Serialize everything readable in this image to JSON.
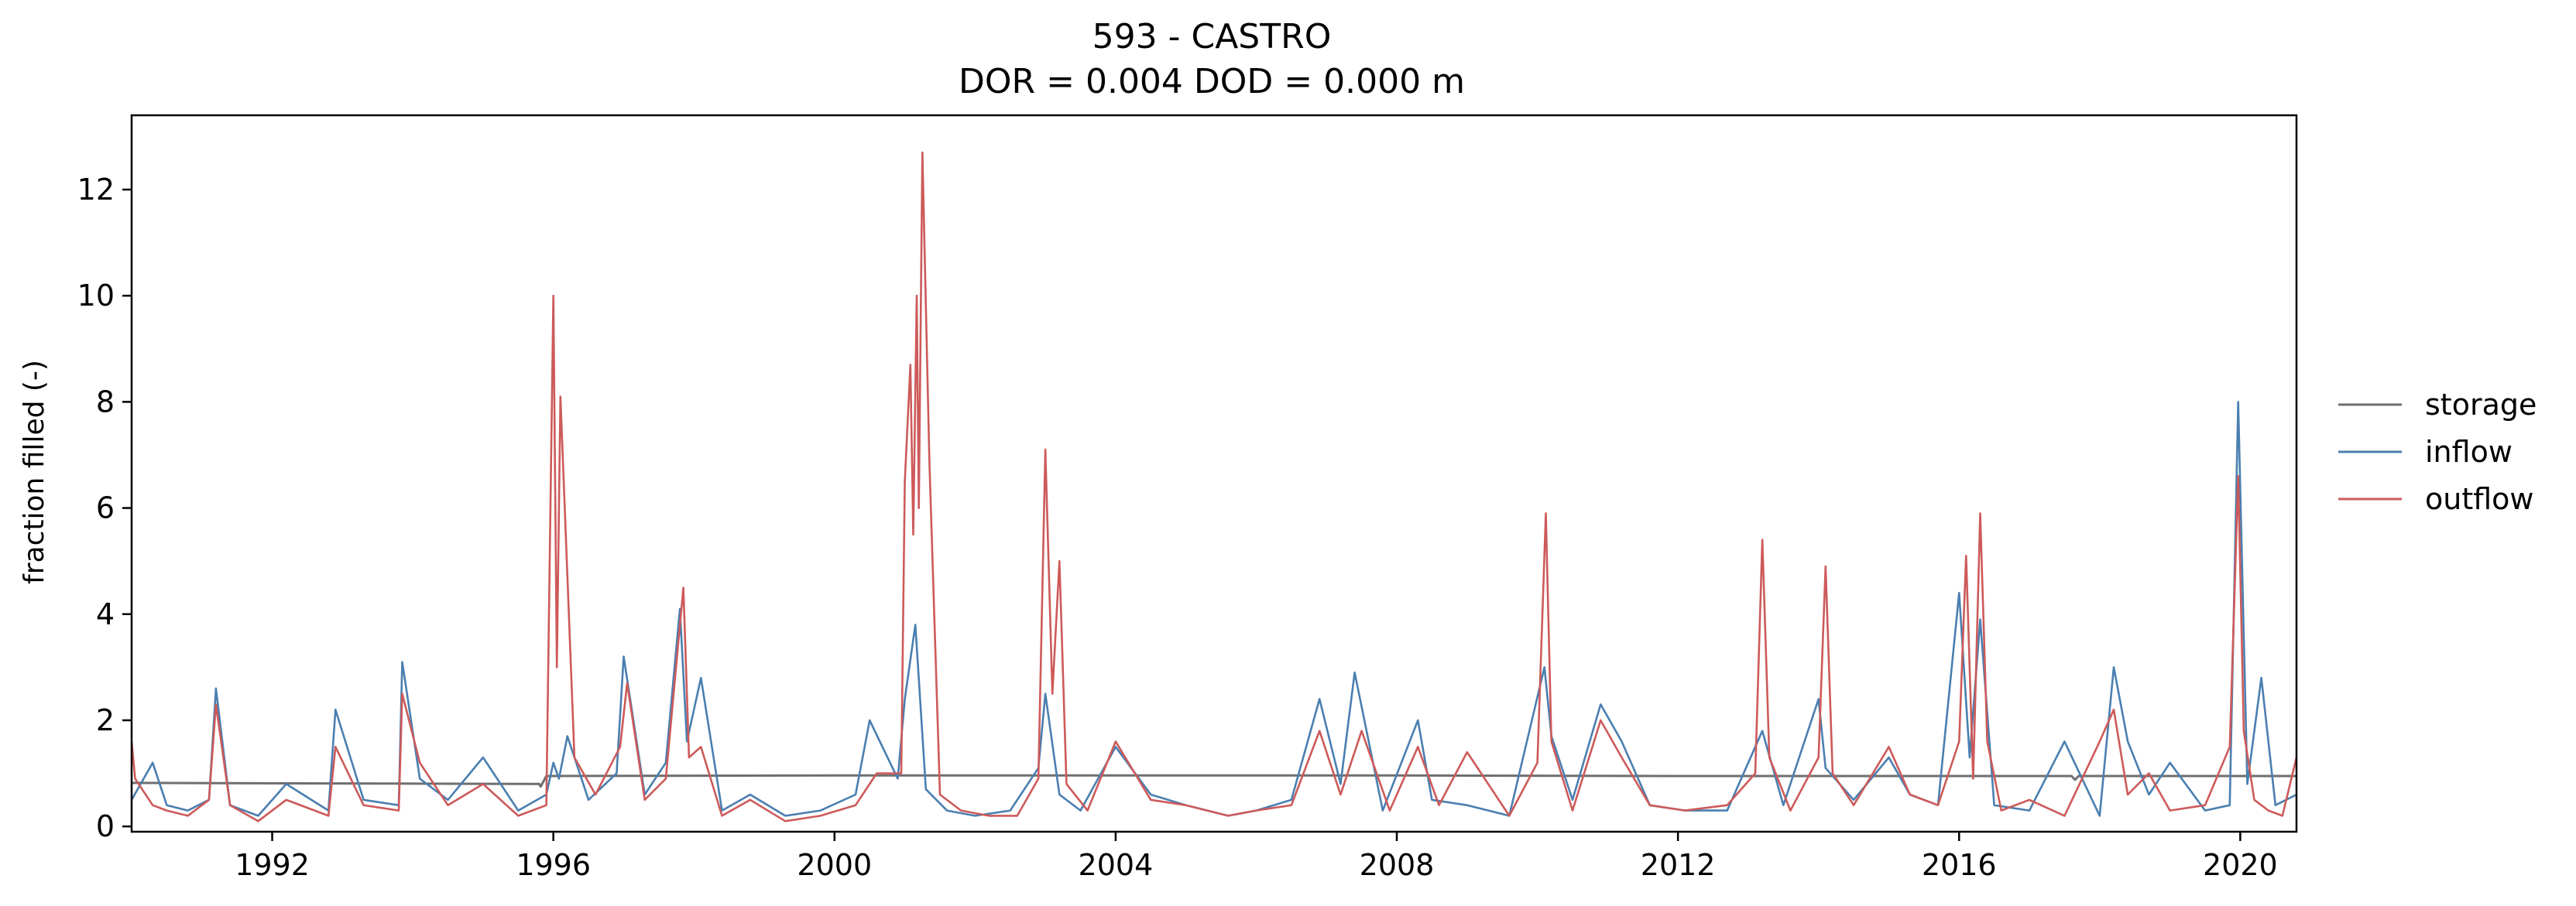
{
  "chart_data": {
    "type": "line",
    "title": "593 - CASTRO",
    "subtitle": "DOR = 0.004  DOD = 0.000 m",
    "xlabel": "",
    "ylabel": "fraction filled (-)",
    "xlim": [
      1990.0,
      2020.8
    ],
    "ylim": [
      -0.1,
      13.4
    ],
    "xticks": [
      1992,
      1996,
      2000,
      2004,
      2008,
      2012,
      2016,
      2020
    ],
    "yticks": [
      0,
      2,
      4,
      6,
      8,
      10,
      12
    ],
    "grid": false,
    "legend": {
      "placement": "outside-right"
    },
    "series": [
      {
        "name": "storage",
        "color": "#6e6e6e",
        "x": [
          1990.0,
          1995.8,
          1995.82,
          1995.9,
          2000.0,
          2004.0,
          2008.0,
          2012.0,
          2017.6,
          2017.65,
          2017.7,
          2018.0,
          2020.8
        ],
        "values": [
          0.82,
          0.8,
          0.75,
          0.95,
          0.96,
          0.96,
          0.96,
          0.95,
          0.95,
          0.88,
          0.95,
          0.95,
          0.95
        ]
      },
      {
        "name": "inflow",
        "color": "#4a7fb0",
        "x": [
          1990.0,
          1990.3,
          1990.5,
          1990.8,
          1991.1,
          1991.2,
          1991.4,
          1991.8,
          1992.2,
          1992.8,
          1992.9,
          1993.3,
          1993.8,
          1993.85,
          1994.1,
          1994.5,
          1995.0,
          1995.5,
          1995.9,
          1996.0,
          1996.08,
          1996.2,
          1996.5,
          1996.9,
          1997.0,
          1997.3,
          1997.6,
          1997.8,
          1997.9,
          1998.1,
          1998.4,
          1998.8,
          1999.3,
          1999.8,
          2000.3,
          2000.5,
          2000.9,
          2001.0,
          2001.15,
          2001.3,
          2001.6,
          2002.0,
          2002.5,
          2002.9,
          2003.0,
          2003.2,
          2003.5,
          2004.0,
          2004.5,
          2005.0,
          2005.6,
          2006.0,
          2006.5,
          2006.9,
          2007.2,
          2007.4,
          2007.8,
          2008.3,
          2008.5,
          2009.0,
          2009.6,
          2010.1,
          2010.2,
          2010.5,
          2010.9,
          2011.2,
          2011.6,
          2012.1,
          2012.7,
          2013.2,
          2013.5,
          2014.0,
          2014.1,
          2014.5,
          2015.0,
          2015.3,
          2015.7,
          2016.0,
          2016.15,
          2016.3,
          2016.5,
          2017.0,
          2017.5,
          2018.0,
          2018.2,
          2018.4,
          2018.7,
          2019.0,
          2019.5,
          2019.85,
          2019.97,
          2020.1,
          2020.3,
          2020.5,
          2020.8
        ],
        "values": [
          0.5,
          1.2,
          0.4,
          0.3,
          0.5,
          2.6,
          0.4,
          0.2,
          0.8,
          0.3,
          2.2,
          0.5,
          0.4,
          3.1,
          0.9,
          0.5,
          1.3,
          0.3,
          0.6,
          1.2,
          0.9,
          1.7,
          0.5,
          1.0,
          3.2,
          0.6,
          1.2,
          4.1,
          1.6,
          2.8,
          0.3,
          0.6,
          0.2,
          0.3,
          0.6,
          2.0,
          0.9,
          2.4,
          3.8,
          0.7,
          0.3,
          0.2,
          0.3,
          1.1,
          2.5,
          0.6,
          0.3,
          1.5,
          0.6,
          0.4,
          0.2,
          0.3,
          0.5,
          2.4,
          0.8,
          2.9,
          0.3,
          2.0,
          0.5,
          0.4,
          0.2,
          3.0,
          1.7,
          0.5,
          2.3,
          1.6,
          0.4,
          0.3,
          0.3,
          1.8,
          0.4,
          2.4,
          1.1,
          0.5,
          1.3,
          0.6,
          0.4,
          4.4,
          1.3,
          3.9,
          0.4,
          0.3,
          1.6,
          0.2,
          3.0,
          1.6,
          0.6,
          1.2,
          0.3,
          0.4,
          8.0,
          0.8,
          2.8,
          0.4,
          0.6
        ]
      },
      {
        "name": "outflow",
        "color": "#cd5a5a",
        "x": [
          1990.0,
          1990.05,
          1990.3,
          1990.5,
          1990.8,
          1991.1,
          1991.2,
          1991.4,
          1991.8,
          1992.2,
          1992.8,
          1992.9,
          1993.3,
          1993.8,
          1993.85,
          1994.1,
          1994.5,
          1995.0,
          1995.5,
          1995.9,
          1996.0,
          1996.05,
          1996.1,
          1996.3,
          1996.6,
          1996.95,
          1997.05,
          1997.3,
          1997.6,
          1997.85,
          1997.93,
          1998.1,
          1998.4,
          1998.8,
          1999.3,
          1999.8,
          2000.3,
          2000.6,
          2000.95,
          2001.0,
          2001.08,
          2001.12,
          2001.17,
          2001.2,
          2001.25,
          2001.35,
          2001.5,
          2001.8,
          2002.2,
          2002.6,
          2002.9,
          2003.0,
          2003.1,
          2003.2,
          2003.3,
          2003.6,
          2004.0,
          2004.5,
          2005.0,
          2005.6,
          2006.0,
          2006.5,
          2006.9,
          2007.2,
          2007.5,
          2007.9,
          2008.3,
          2008.6,
          2009.0,
          2009.6,
          2010.0,
          2010.12,
          2010.2,
          2010.5,
          2010.9,
          2011.2,
          2011.6,
          2012.1,
          2012.7,
          2013.1,
          2013.2,
          2013.3,
          2013.6,
          2014.0,
          2014.1,
          2014.2,
          2014.5,
          2015.0,
          2015.3,
          2015.7,
          2016.0,
          2016.1,
          2016.2,
          2016.3,
          2016.4,
          2016.6,
          2017.0,
          2017.5,
          2018.0,
          2018.2,
          2018.4,
          2018.7,
          2019.0,
          2019.5,
          2019.85,
          2019.97,
          2020.05,
          2020.2,
          2020.4,
          2020.6,
          2020.8
        ],
        "values": [
          1.6,
          0.9,
          0.4,
          0.3,
          0.2,
          0.5,
          2.3,
          0.4,
          0.1,
          0.5,
          0.2,
          1.5,
          0.4,
          0.3,
          2.5,
          1.2,
          0.4,
          0.8,
          0.2,
          0.4,
          10.0,
          3.0,
          8.1,
          1.3,
          0.6,
          1.5,
          2.7,
          0.5,
          0.9,
          4.5,
          1.3,
          1.5,
          0.2,
          0.5,
          0.1,
          0.2,
          0.4,
          1.0,
          1.0,
          6.5,
          8.7,
          5.5,
          10.0,
          6.0,
          12.7,
          6.9,
          0.6,
          0.3,
          0.2,
          0.2,
          0.9,
          7.1,
          2.5,
          5.0,
          0.8,
          0.3,
          1.6,
          0.5,
          0.4,
          0.2,
          0.3,
          0.4,
          1.8,
          0.6,
          1.8,
          0.3,
          1.5,
          0.4,
          1.4,
          0.2,
          1.2,
          5.9,
          1.6,
          0.3,
          2.0,
          1.3,
          0.4,
          0.3,
          0.4,
          1.0,
          5.4,
          1.3,
          0.3,
          1.3,
          4.9,
          1.0,
          0.4,
          1.5,
          0.6,
          0.4,
          1.6,
          5.1,
          0.9,
          5.9,
          1.6,
          0.3,
          0.5,
          0.2,
          1.6,
          2.2,
          0.6,
          1.0,
          0.3,
          0.4,
          1.5,
          6.6,
          1.8,
          0.5,
          0.3,
          0.2,
          1.3
        ]
      }
    ]
  }
}
